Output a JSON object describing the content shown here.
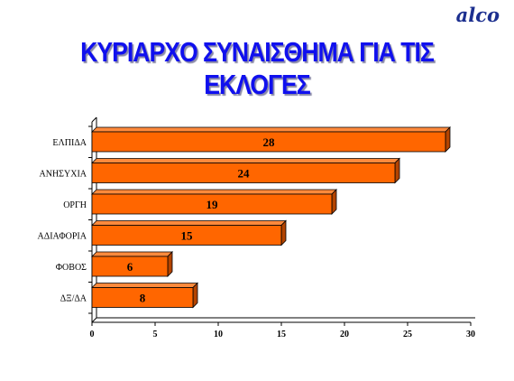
{
  "header": {
    "logo_text": "alco"
  },
  "title": "ΚΥΡΙΑΡΧΟ ΣΥΝΑΙΣΘΗΜΑ ΓΙΑ ΤΙΣ ΕΚΛΟΓΕΣ",
  "chart_data": {
    "type": "bar",
    "orientation": "horizontal",
    "categories": [
      "ΕΛΠΙΔΑ",
      "ΑΝΗΣΥΧΙΑ",
      "ΟΡΓΗ",
      "ΑΔΙΑΦΟΡΙΑ",
      "ΦΟΒΟΣ",
      "ΔΞ/ΔΑ"
    ],
    "values": [
      28,
      24,
      19,
      15,
      6,
      8
    ],
    "title": "ΚΥΡΙΑΡΧΟ ΣΥΝΑΙΣΘΗΜΑ ΓΙΑ ΤΙΣ ΕΚΛΟΓΕΣ",
    "xlim": [
      0,
      30
    ],
    "xticks": [
      0,
      5,
      10,
      15,
      20,
      25,
      30
    ],
    "grid": false,
    "bar_color": "#ff6600",
    "bar_top_color": "#ff8a3c",
    "bar_side_color": "#b34400"
  }
}
